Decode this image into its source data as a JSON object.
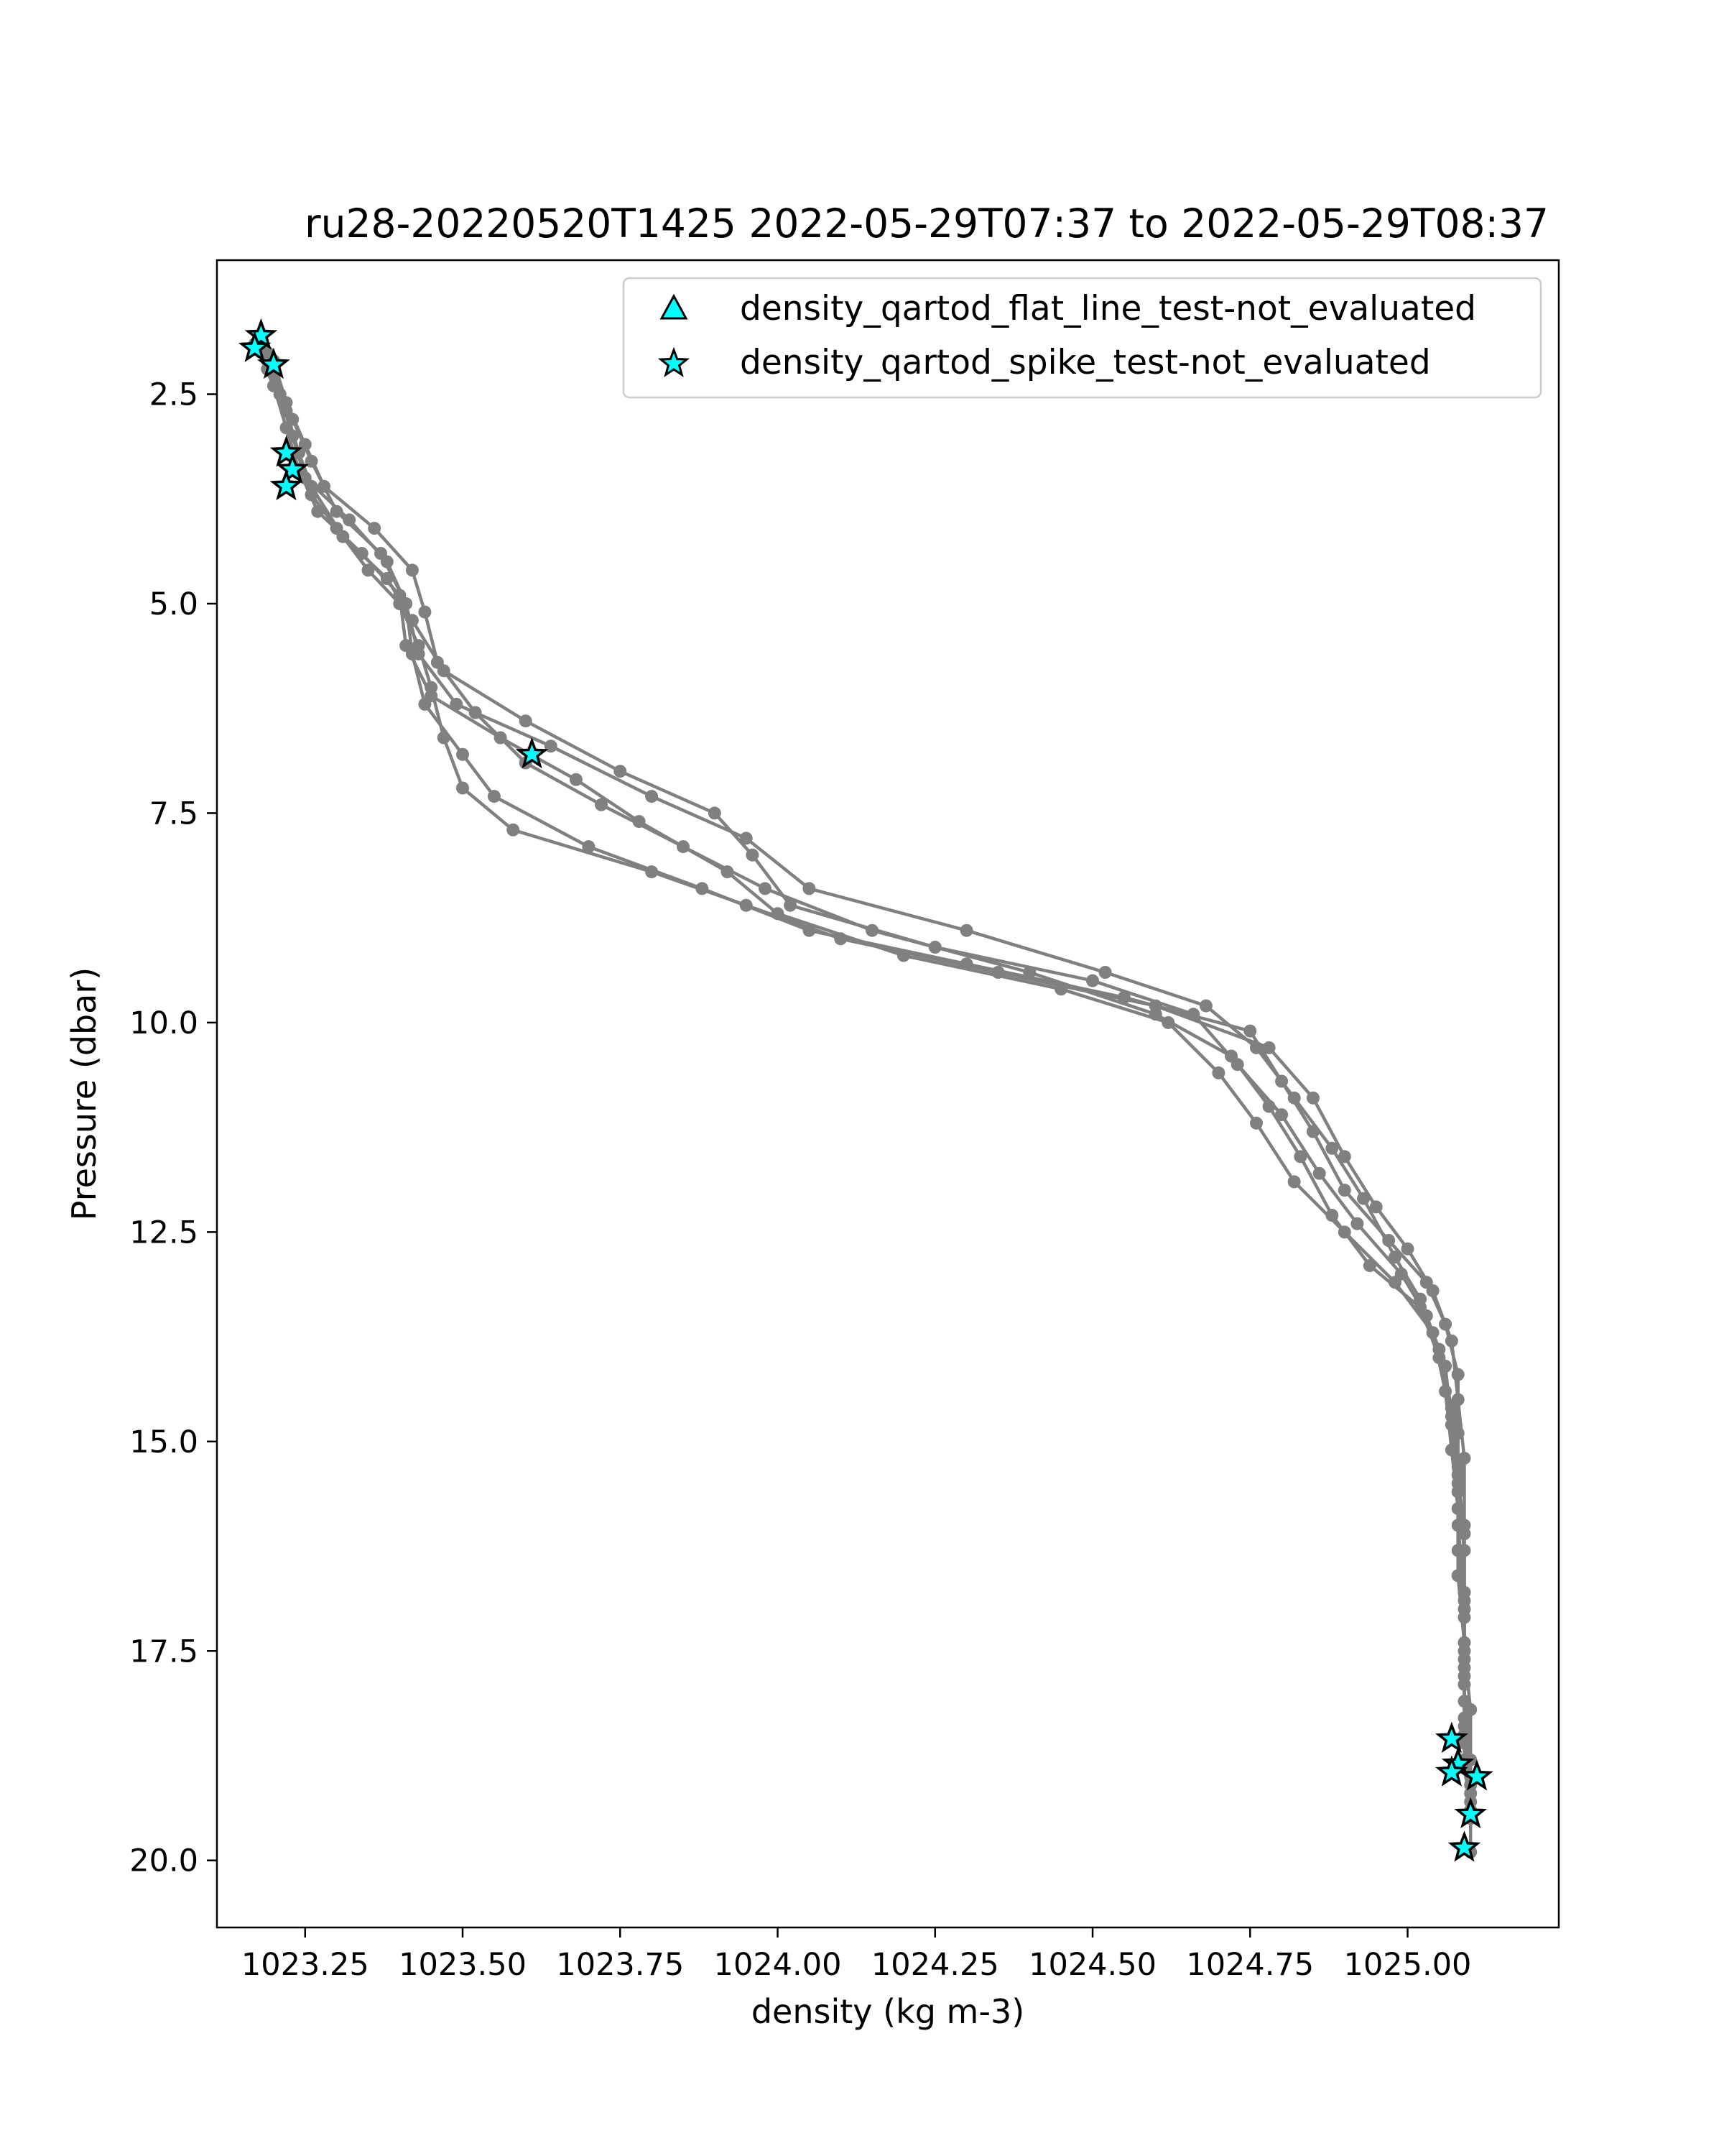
{
  "chart_data": {
    "type": "scatter",
    "title": "ru28-20220520T1425 2022-05-29T07:37 to 2022-05-29T08:37",
    "xlabel": "density (kg m-3)",
    "ylabel": "Pressure (dbar)",
    "xlim": [
      1023.11,
      1025.24
    ],
    "ylim": [
      20.8,
      0.9
    ],
    "y_inverted": true,
    "grid": false,
    "legend_position": "top-right",
    "colors": {
      "profile_line": "#808080",
      "marker_fill": "#00ffff",
      "marker_edge": "#000000"
    },
    "xticks": [
      {
        "v": 1023.25,
        "label": "1023.25"
      },
      {
        "v": 1023.5,
        "label": "1023.50"
      },
      {
        "v": 1023.75,
        "label": "1023.75"
      },
      {
        "v": 1024.0,
        "label": "1024.00"
      },
      {
        "v": 1024.25,
        "label": "1024.25"
      },
      {
        "v": 1024.5,
        "label": "1024.50"
      },
      {
        "v": 1024.75,
        "label": "1024.75"
      },
      {
        "v": 1025.0,
        "label": "1025.00"
      }
    ],
    "yticks": [
      {
        "v": 2.5,
        "label": "2.5"
      },
      {
        "v": 5.0,
        "label": "5.0"
      },
      {
        "v": 7.5,
        "label": "7.5"
      },
      {
        "v": 10.0,
        "label": "10.0"
      },
      {
        "v": 12.5,
        "label": "12.5"
      },
      {
        "v": 15.0,
        "label": "15.0"
      },
      {
        "v": 17.5,
        "label": "17.5"
      },
      {
        "v": 20.0,
        "label": "20.0"
      }
    ],
    "legend": [
      {
        "name": "density_qartod_flat_line_test-not_evaluated",
        "marker": "triangle",
        "color": "#00ffff"
      },
      {
        "name": "density_qartod_spike_test-not_evaluated",
        "marker": "star",
        "color": "#00ffff"
      }
    ],
    "profiles": [
      {
        "name": "",
        "points": [
          [
            1023.18,
            1.8
          ],
          [
            1023.2,
            2.2
          ],
          [
            1023.22,
            2.7
          ],
          [
            1023.24,
            3.2
          ],
          [
            1023.26,
            3.7
          ],
          [
            1023.3,
            4.1
          ],
          [
            1023.35,
            4.6
          ],
          [
            1023.4,
            5.0
          ],
          [
            1023.43,
            5.5
          ],
          [
            1023.45,
            6.0
          ],
          [
            1023.47,
            6.6
          ],
          [
            1023.5,
            7.2
          ],
          [
            1023.58,
            7.7
          ],
          [
            1023.8,
            8.2
          ],
          [
            1023.95,
            8.6
          ],
          [
            1024.1,
            9.0
          ],
          [
            1024.35,
            9.4
          ],
          [
            1024.6,
            9.8
          ],
          [
            1024.78,
            10.3
          ],
          [
            1024.85,
            10.9
          ],
          [
            1024.9,
            11.6
          ],
          [
            1024.95,
            12.2
          ],
          [
            1025.0,
            12.7
          ],
          [
            1025.04,
            13.2
          ],
          [
            1025.07,
            13.8
          ],
          [
            1025.08,
            14.5
          ],
          [
            1025.09,
            15.2
          ],
          [
            1025.09,
            16.0
          ],
          [
            1025.09,
            16.8
          ],
          [
            1025.09,
            17.5
          ],
          [
            1025.1,
            18.2
          ],
          [
            1025.1,
            18.8
          ],
          [
            1025.1,
            19.4
          ]
        ]
      },
      {
        "name": "",
        "points": [
          [
            1023.19,
            2.0
          ],
          [
            1023.21,
            2.5
          ],
          [
            1023.23,
            3.0
          ],
          [
            1023.25,
            3.5
          ],
          [
            1023.32,
            4.0
          ],
          [
            1023.38,
            4.5
          ],
          [
            1023.41,
            5.0
          ],
          [
            1023.42,
            5.6
          ],
          [
            1023.44,
            6.2
          ],
          [
            1023.5,
            6.8
          ],
          [
            1023.55,
            7.3
          ],
          [
            1023.7,
            7.9
          ],
          [
            1023.88,
            8.4
          ],
          [
            1024.05,
            8.9
          ],
          [
            1024.3,
            9.3
          ],
          [
            1024.55,
            9.7
          ],
          [
            1024.75,
            10.1
          ],
          [
            1024.8,
            10.7
          ],
          [
            1024.85,
            11.3
          ],
          [
            1024.9,
            12.0
          ],
          [
            1024.97,
            12.6
          ],
          [
            1025.03,
            13.1
          ],
          [
            1025.06,
            13.6
          ],
          [
            1025.08,
            14.2
          ],
          [
            1025.08,
            14.9
          ],
          [
            1025.08,
            15.6
          ],
          [
            1025.09,
            16.3
          ],
          [
            1025.09,
            17.0
          ],
          [
            1025.09,
            17.8
          ],
          [
            1025.09,
            18.5
          ],
          [
            1025.1,
            19.2
          ],
          [
            1025.1,
            19.9
          ]
        ]
      },
      {
        "name": "",
        "points": [
          [
            1023.2,
            2.1
          ],
          [
            1023.22,
            2.6
          ],
          [
            1023.25,
            3.1
          ],
          [
            1023.28,
            3.6
          ],
          [
            1023.36,
            4.1
          ],
          [
            1023.42,
            4.6
          ],
          [
            1023.44,
            5.1
          ],
          [
            1023.46,
            5.7
          ],
          [
            1023.52,
            6.3
          ],
          [
            1023.6,
            6.9
          ],
          [
            1023.72,
            7.4
          ],
          [
            1023.85,
            7.9
          ],
          [
            1023.98,
            8.4
          ],
          [
            1024.15,
            8.9
          ],
          [
            1024.4,
            9.4
          ],
          [
            1024.6,
            9.9
          ],
          [
            1024.72,
            10.4
          ],
          [
            1024.78,
            11.0
          ],
          [
            1024.83,
            11.6
          ],
          [
            1024.88,
            12.3
          ],
          [
            1024.94,
            12.9
          ],
          [
            1025.02,
            13.4
          ],
          [
            1025.05,
            14.0
          ],
          [
            1025.07,
            14.7
          ],
          [
            1025.08,
            15.4
          ],
          [
            1025.09,
            16.1
          ],
          [
            1025.09,
            16.9
          ],
          [
            1025.09,
            17.7
          ],
          [
            1025.09,
            18.4
          ],
          [
            1025.1,
            19.1
          ]
        ]
      },
      {
        "name": "",
        "points": [
          [
            1023.17,
            1.9
          ],
          [
            1023.2,
            2.4
          ],
          [
            1023.22,
            2.9
          ],
          [
            1023.24,
            3.4
          ],
          [
            1023.27,
            3.9
          ],
          [
            1023.34,
            4.4
          ],
          [
            1023.4,
            4.9
          ],
          [
            1023.41,
            5.5
          ],
          [
            1023.45,
            6.1
          ],
          [
            1023.56,
            6.6
          ],
          [
            1023.68,
            7.1
          ],
          [
            1023.78,
            7.6
          ],
          [
            1023.92,
            8.2
          ],
          [
            1024.0,
            8.7
          ],
          [
            1024.2,
            9.2
          ],
          [
            1024.45,
            9.6
          ],
          [
            1024.62,
            10.0
          ],
          [
            1024.7,
            10.6
          ],
          [
            1024.76,
            11.2
          ],
          [
            1024.82,
            11.9
          ],
          [
            1024.9,
            12.5
          ],
          [
            1024.98,
            13.1
          ],
          [
            1025.04,
            13.7
          ],
          [
            1025.06,
            14.4
          ],
          [
            1025.07,
            15.1
          ],
          [
            1025.08,
            15.8
          ],
          [
            1025.08,
            16.6
          ],
          [
            1025.09,
            17.4
          ],
          [
            1025.09,
            18.1
          ],
          [
            1025.09,
            18.8
          ],
          [
            1025.1,
            19.5
          ]
        ]
      },
      {
        "name": "",
        "points": [
          [
            1023.18,
            2.0
          ],
          [
            1023.21,
            2.5
          ],
          [
            1023.23,
            3.0
          ],
          [
            1023.26,
            3.6
          ],
          [
            1023.31,
            4.2
          ],
          [
            1023.38,
            4.7
          ],
          [
            1023.42,
            5.2
          ],
          [
            1023.47,
            5.8
          ],
          [
            1023.6,
            6.4
          ],
          [
            1023.75,
            7.0
          ],
          [
            1023.9,
            7.5
          ],
          [
            1023.96,
            8.0
          ],
          [
            1024.02,
            8.6
          ],
          [
            1024.25,
            9.1
          ],
          [
            1024.5,
            9.5
          ],
          [
            1024.66,
            9.9
          ],
          [
            1024.73,
            10.5
          ],
          [
            1024.8,
            11.1
          ],
          [
            1024.86,
            11.8
          ],
          [
            1024.92,
            12.4
          ],
          [
            1024.99,
            13.0
          ],
          [
            1025.03,
            13.5
          ],
          [
            1025.06,
            14.1
          ],
          [
            1025.07,
            14.8
          ],
          [
            1025.08,
            15.5
          ],
          [
            1025.08,
            16.3
          ],
          [
            1025.09,
            17.1
          ],
          [
            1025.09,
            17.9
          ],
          [
            1025.09,
            18.6
          ],
          [
            1025.1,
            19.3
          ]
        ]
      },
      {
        "name": "",
        "points": [
          [
            1023.19,
            2.2
          ],
          [
            1023.23,
            2.8
          ],
          [
            1023.26,
            3.3
          ],
          [
            1023.3,
            3.9
          ],
          [
            1023.37,
            4.4
          ],
          [
            1023.41,
            5.0
          ],
          [
            1023.43,
            5.6
          ],
          [
            1023.49,
            6.2
          ],
          [
            1023.64,
            6.7
          ],
          [
            1023.8,
            7.3
          ],
          [
            1023.95,
            7.8
          ],
          [
            1024.05,
            8.4
          ],
          [
            1024.3,
            8.9
          ],
          [
            1024.52,
            9.4
          ],
          [
            1024.68,
            9.8
          ],
          [
            1024.76,
            10.3
          ],
          [
            1024.82,
            10.9
          ],
          [
            1024.88,
            11.5
          ],
          [
            1024.93,
            12.1
          ],
          [
            1024.98,
            12.8
          ],
          [
            1025.02,
            13.3
          ],
          [
            1025.05,
            13.9
          ],
          [
            1025.07,
            14.6
          ],
          [
            1025.08,
            15.3
          ],
          [
            1025.08,
            16.0
          ],
          [
            1025.09,
            16.8
          ],
          [
            1025.09,
            17.6
          ],
          [
            1025.09,
            18.3
          ],
          [
            1025.1,
            19.0
          ]
        ]
      }
    ],
    "spike_test_not_evaluated": [
      [
        1023.18,
        1.8
      ],
      [
        1023.17,
        1.95
      ],
      [
        1023.2,
        2.15
      ],
      [
        1023.22,
        3.2
      ],
      [
        1023.23,
        3.4
      ],
      [
        1023.22,
        3.6
      ],
      [
        1023.61,
        6.8
      ],
      [
        1025.07,
        18.55
      ],
      [
        1025.08,
        18.85
      ],
      [
        1025.07,
        18.95
      ],
      [
        1025.11,
        19.0
      ],
      [
        1025.1,
        19.45
      ],
      [
        1025.09,
        19.85
      ]
    ],
    "flat_line_test_not_evaluated": []
  }
}
